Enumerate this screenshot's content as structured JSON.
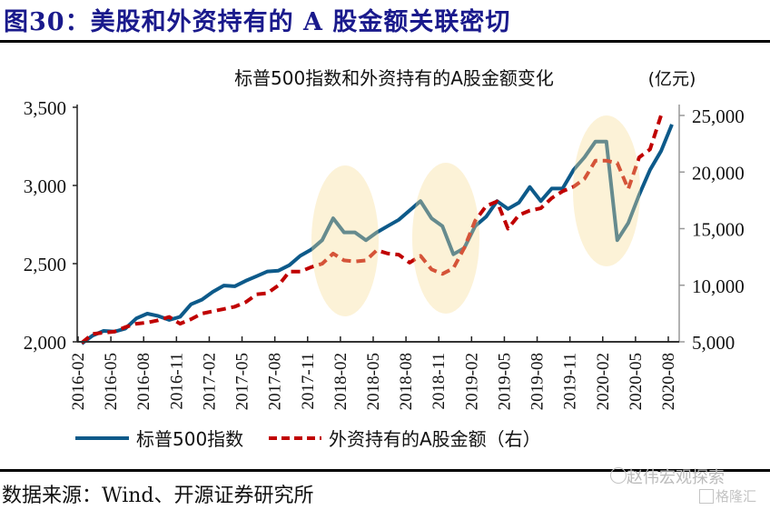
{
  "figure": {
    "title": "图30：美股和外资持有的 A 股金额关联密切",
    "source": "数据来源：Wind、开源证券研究所",
    "watermark": "赵伟宏观探索",
    "watermark2": "格隆汇"
  },
  "colors": {
    "title": "#1a1a8c",
    "sp500": "#0d5a8a",
    "foreign": "#c00000",
    "highlight": "#fdf0d0"
  },
  "chart_data": {
    "type": "line",
    "title": "标普500指数和外资持有的A股金额变化",
    "unit_label": "(亿元)",
    "xlabel": "",
    "ylabel": "",
    "ylim": [
      2000,
      3500
    ],
    "y2lim": [
      5000,
      25000
    ],
    "yticks": [
      "3,500",
      "3,000",
      "2,500",
      "2,000"
    ],
    "yticks_values": [
      3500,
      3000,
      2500,
      2000
    ],
    "y2ticks": [
      "25,000",
      "20,000",
      "15,000",
      "10,000",
      "5,000"
    ],
    "y2ticks_values": [
      25000,
      20000,
      15000,
      10000,
      5000
    ],
    "xtick_labels": [
      "2016-02",
      "2016-05",
      "2016-08",
      "2016-11",
      "2017-02",
      "2017-05",
      "2017-08",
      "2017-11",
      "2018-02",
      "2018-05",
      "2018-08",
      "2018-11",
      "2019-02",
      "2019-05",
      "2019-08",
      "2019-11",
      "2020-02",
      "2020-05",
      "2020-08"
    ],
    "x": [
      "2016-02",
      "2016-03",
      "2016-04",
      "2016-05",
      "2016-06",
      "2016-07",
      "2016-08",
      "2016-09",
      "2016-10",
      "2016-11",
      "2016-12",
      "2017-01",
      "2017-02",
      "2017-03",
      "2017-04",
      "2017-05",
      "2017-06",
      "2017-07",
      "2017-08",
      "2017-09",
      "2017-10",
      "2017-11",
      "2017-12",
      "2018-01",
      "2018-02",
      "2018-03",
      "2018-04",
      "2018-05",
      "2018-06",
      "2018-07",
      "2018-08",
      "2018-09",
      "2018-10",
      "2018-11",
      "2018-12",
      "2019-01",
      "2019-02",
      "2019-03",
      "2019-04",
      "2019-05",
      "2019-06",
      "2019-07",
      "2019-08",
      "2019-09",
      "2019-10",
      "2019-11",
      "2019-12",
      "2020-01",
      "2020-02",
      "2020-03",
      "2020-04",
      "2020-05",
      "2020-06",
      "2020-07",
      "2020-08"
    ],
    "series": [
      {
        "name": "标普500指数",
        "axis": "left",
        "style": "solid",
        "values": [
          1940,
          2040,
          2070,
          2065,
          2085,
          2150,
          2180,
          2165,
          2140,
          2160,
          2240,
          2270,
          2320,
          2360,
          2355,
          2390,
          2420,
          2450,
          2455,
          2490,
          2550,
          2590,
          2650,
          2790,
          2700,
          2700,
          2650,
          2700,
          2740,
          2780,
          2840,
          2900,
          2790,
          2740,
          2560,
          2600,
          2740,
          2800,
          2900,
          2850,
          2890,
          2990,
          2900,
          2980,
          2980,
          3100,
          3180,
          3280,
          3280,
          2650,
          2760,
          2940,
          3100,
          3220,
          3390
        ]
      },
      {
        "name": "外资持有的A股金额（右）",
        "axis": "right",
        "style": "dashed",
        "values": [
          4900,
          5700,
          5800,
          5900,
          6300,
          6600,
          6700,
          6900,
          7200,
          6600,
          7000,
          7500,
          7700,
          7900,
          8100,
          8500,
          9200,
          9300,
          10000,
          11200,
          11200,
          11600,
          11900,
          12800,
          12200,
          12100,
          12200,
          13100,
          12800,
          12700,
          12000,
          12600,
          11400,
          11000,
          11500,
          13300,
          15700,
          17000,
          17400,
          15000,
          16200,
          16600,
          16800,
          17700,
          18300,
          18700,
          19400,
          21000,
          21000,
          20800,
          18500,
          21300,
          22000,
          25000,
          null
        ]
      }
    ],
    "highlights": [
      {
        "center": "2018-02"
      },
      {
        "center": "2018-11"
      },
      {
        "center": "2020-02"
      }
    ],
    "legend": [
      "标普500指数",
      "外资持有的A股金额（右）"
    ],
    "legend_position": "bottom",
    "grid": false
  }
}
